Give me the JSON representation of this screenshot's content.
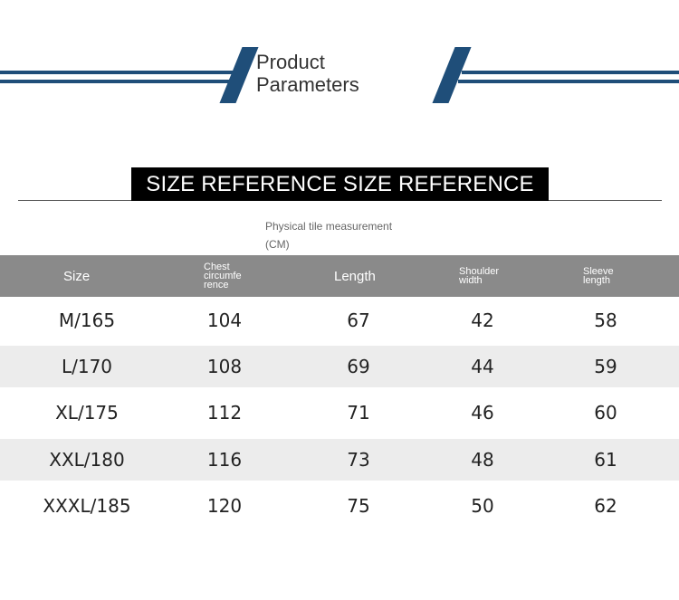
{
  "header": {
    "title_line1": "Product",
    "title_line2": "Parameters",
    "accent_color": "#1f4e79"
  },
  "banner": {
    "text": "SIZE REFERENCE SIZE REFERENCE"
  },
  "note": {
    "line1": "Physical tile measurement",
    "line2": "(CM)"
  },
  "table": {
    "columns": [
      {
        "label": "Size"
      },
      {
        "label": "Chest circumfe rence"
      },
      {
        "label": "Length"
      },
      {
        "label": "Shoulder width"
      },
      {
        "label": "Sleeve length"
      }
    ],
    "rows": [
      {
        "size": "M/165",
        "chest": "104",
        "length": "67",
        "shoulder": "42",
        "sleeve": "58"
      },
      {
        "size": "L/170",
        "chest": "108",
        "length": "69",
        "shoulder": "44",
        "sleeve": "59"
      },
      {
        "size": "XL/175",
        "chest": "112",
        "length": "71",
        "shoulder": "46",
        "sleeve": "60"
      },
      {
        "size": "XXL/180",
        "chest": "116",
        "length": "73",
        "shoulder": "48",
        "sleeve": "61"
      },
      {
        "size": "XXXL/185",
        "chest": "120",
        "length": "75",
        "shoulder": "50",
        "sleeve": "62"
      }
    ]
  }
}
